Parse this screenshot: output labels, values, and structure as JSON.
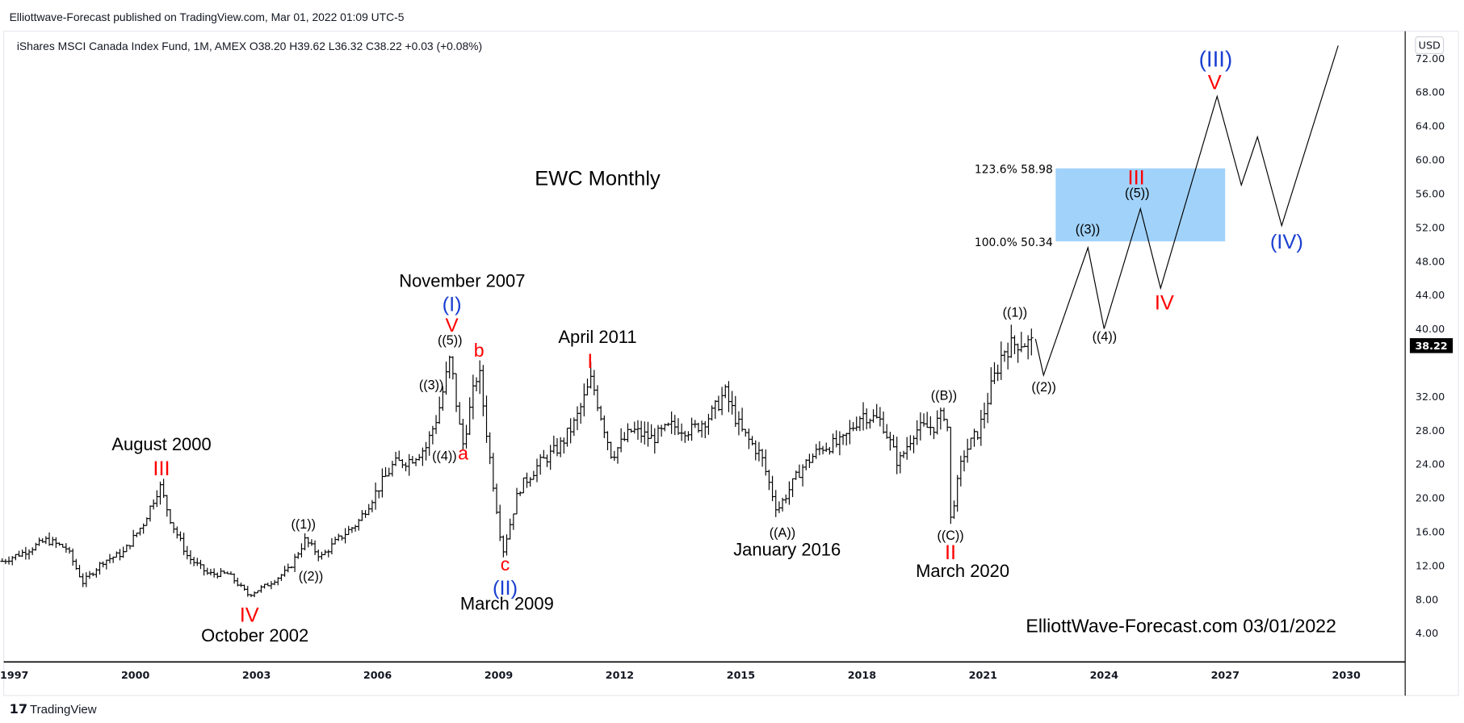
{
  "header": {
    "published": "Elliottwave-Forecast published on TradingView.com, Mar 01, 2022 01:09 UTC-5",
    "legend": "iShares MSCI Canada Index Fund, 1M, AMEX  O38.20  H39.62  L36.32  C38.22  +0.03 (+0.08%)"
  },
  "footer": {
    "brand": "TradingView"
  },
  "price_axis": {
    "currency": "USD",
    "last_price": "38.22",
    "last_price_bg": "#000000"
  },
  "colors": {
    "wave_red": "#ff0000",
    "wave_blue": "#1a3fd1",
    "fib_box": "#90caf9",
    "bars": "#000000"
  },
  "chart_data": {
    "type": "ohlc-bar",
    "title": "EWC Monthly",
    "xlabel": "",
    "ylabel": "",
    "xlim": [
      1996.7,
      2031.5
    ],
    "ylim": [
      1.5,
      75
    ],
    "x_ticks": [
      "1997",
      "2000",
      "2003",
      "2006",
      "2009",
      "2012",
      "2015",
      "2018",
      "2021",
      "2024",
      "2027",
      "2030"
    ],
    "y_ticks": [
      "72.00",
      "68.00",
      "64.00",
      "60.00",
      "56.00",
      "52.00",
      "48.00",
      "44.00",
      "40.00",
      "36.00",
      "32.00",
      "28.00",
      "24.00",
      "20.00",
      "16.00",
      "12.00",
      "8.00",
      "4.00"
    ],
    "grid": false,
    "price_path": [
      [
        1996.7,
        12.5
      ],
      [
        1997.2,
        13.5
      ],
      [
        1997.8,
        15
      ],
      [
        1998.3,
        14
      ],
      [
        1998.7,
        10
      ],
      [
        1999.2,
        12.5
      ],
      [
        1999.7,
        13.5
      ],
      [
        2000.2,
        17
      ],
      [
        2000.6,
        21.5
      ],
      [
        2000.9,
        17
      ],
      [
        2001.3,
        13
      ],
      [
        2001.8,
        11
      ],
      [
        2002.3,
        11
      ],
      [
        2002.8,
        8.5
      ],
      [
        2003.3,
        9.8
      ],
      [
        2003.8,
        11.5
      ],
      [
        2004.2,
        15
      ],
      [
        2004.6,
        13
      ],
      [
        2005.0,
        15
      ],
      [
        2005.5,
        17
      ],
      [
        2006.0,
        21
      ],
      [
        2006.4,
        24
      ],
      [
        2006.8,
        24.5
      ],
      [
        2007.2,
        26
      ],
      [
        2007.5,
        30
      ],
      [
        2007.8,
        36.5
      ],
      [
        2008.1,
        26
      ],
      [
        2008.5,
        35.5
      ],
      [
        2008.8,
        24
      ],
      [
        2009.1,
        13.5
      ],
      [
        2009.5,
        21
      ],
      [
        2010.0,
        24
      ],
      [
        2010.5,
        26
      ],
      [
        2010.9,
        29
      ],
      [
        2011.3,
        34
      ],
      [
        2011.8,
        25
      ],
      [
        2012.3,
        28
      ],
      [
        2012.8,
        27
      ],
      [
        2013.3,
        28.5
      ],
      [
        2013.8,
        28
      ],
      [
        2014.3,
        30
      ],
      [
        2014.6,
        32.5
      ],
      [
        2015.0,
        28
      ],
      [
        2015.5,
        25
      ],
      [
        2015.9,
        18.5
      ],
      [
        2016.5,
        23.5
      ],
      [
        2017.0,
        26
      ],
      [
        2017.5,
        26.5
      ],
      [
        2018.0,
        30
      ],
      [
        2018.5,
        29
      ],
      [
        2018.9,
        24
      ],
      [
        2019.3,
        28
      ],
      [
        2019.8,
        28.5
      ],
      [
        2020.1,
        30.5
      ],
      [
        2020.2,
        17.5
      ],
      [
        2020.5,
        25
      ],
      [
        2020.9,
        28
      ],
      [
        2021.2,
        33
      ],
      [
        2021.5,
        37.5
      ],
      [
        2021.9,
        38.5
      ],
      [
        2022.2,
        38.22
      ]
    ],
    "projection_path": [
      [
        2022.3,
        38.8
      ],
      [
        2022.5,
        34.5
      ],
      [
        2023.6,
        49.6
      ],
      [
        2024.0,
        40
      ],
      [
        2024.9,
        54.2
      ],
      [
        2025.4,
        44.8
      ],
      [
        2026.8,
        67.5
      ],
      [
        2027.4,
        57
      ],
      [
        2027.8,
        62.7
      ],
      [
        2028.4,
        52.2
      ],
      [
        2029.8,
        73.5
      ]
    ],
    "fib_box": {
      "x": [
        2022.8,
        2027.0
      ],
      "y": [
        50.34,
        58.98
      ],
      "labels": [
        "123.6% 58.98",
        "100.0% 50.34"
      ]
    },
    "annotations": [
      {
        "text": "EWC Monthly",
        "color": "black"
      },
      {
        "text": "November 2007",
        "color": "black"
      },
      {
        "text": "(I)",
        "color": "blue"
      },
      {
        "text": "V",
        "color": "red"
      },
      {
        "text": "((5))",
        "color": "black"
      },
      {
        "text": "b",
        "color": "red"
      },
      {
        "text": "((3))",
        "color": "black"
      },
      {
        "text": "((4))",
        "color": "black"
      },
      {
        "text": "a",
        "color": "red"
      },
      {
        "text": "August 2000",
        "color": "black"
      },
      {
        "text": "III",
        "color": "red"
      },
      {
        "text": "((1))",
        "color": "black"
      },
      {
        "text": "((2))",
        "color": "black"
      },
      {
        "text": "IV",
        "color": "red"
      },
      {
        "text": "October 2002",
        "color": "black"
      },
      {
        "text": "c",
        "color": "red"
      },
      {
        "text": "(II)",
        "color": "blue"
      },
      {
        "text": "March 2009",
        "color": "black"
      },
      {
        "text": "April 2011",
        "color": "black"
      },
      {
        "text": "I",
        "color": "red"
      },
      {
        "text": "((A))",
        "color": "black"
      },
      {
        "text": "January 2016",
        "color": "black"
      },
      {
        "text": "((B))",
        "color": "black"
      },
      {
        "text": "((C))",
        "color": "black"
      },
      {
        "text": "II",
        "color": "red"
      },
      {
        "text": "March 2020",
        "color": "black"
      },
      {
        "text": "((1))",
        "color": "black"
      },
      {
        "text": "((2))",
        "color": "black"
      },
      {
        "text": "((3))",
        "color": "black"
      },
      {
        "text": "((4))",
        "color": "black"
      },
      {
        "text": "III",
        "color": "red"
      },
      {
        "text": "((5))",
        "color": "black"
      },
      {
        "text": "IV",
        "color": "red"
      },
      {
        "text": "V",
        "color": "red"
      },
      {
        "text": "(III)",
        "color": "blue"
      },
      {
        "text": "(IV)",
        "color": "blue"
      },
      {
        "text": "ElliottWave-Forecast.com 03/01/2022",
        "color": "black"
      }
    ]
  }
}
